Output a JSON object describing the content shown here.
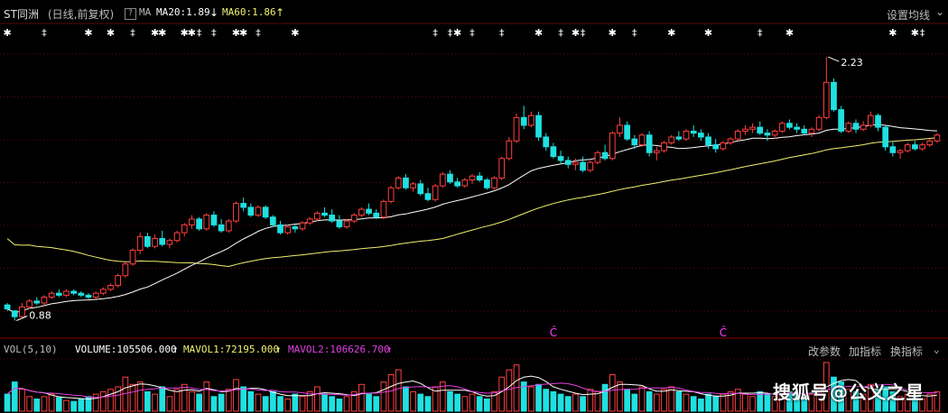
{
  "header": {
    "stock": "ST同洲",
    "mode": "(日线,前复权)",
    "ma_label": "MA",
    "ma20": "MA20:1.89",
    "ma20_arrow": "↓",
    "ma60": "MA60:1.86",
    "ma60_arrow": "↑",
    "settings": "设置均线"
  },
  "volume_bar": {
    "vol_label": "VOL(5,10)",
    "volume": "VOLUME:105506.000",
    "volume_arrow": "↑",
    "mavol1": "MAVOL1:72195.000",
    "mavol1_arrow": "↑",
    "mavol2": "MAVOL2:106626.700",
    "mavol2_arrow": "↑",
    "btn_params": "改参数",
    "btn_add": "加指标",
    "btn_switch": "换指标"
  },
  "watermark": "搜狐号@公义之星",
  "colors": {
    "up": "#ff4040",
    "down": "#20e0e0",
    "ma20": "#ffffff",
    "ma60": "#f0f070",
    "mavol1": "#ffffff",
    "mavol2": "#e040e0"
  },
  "chart_data": {
    "type": "candlestick",
    "series_ohlc": "daily candles (approx.)",
    "annotations": {
      "high_label": "2.23",
      "low_label": "0.88"
    },
    "price_range": [
      0.85,
      2.3
    ],
    "candles": [
      [
        0.96,
        0.97,
        0.93,
        0.94
      ],
      [
        0.93,
        0.93,
        0.88,
        0.9
      ],
      [
        0.9,
        0.97,
        0.89,
        0.95
      ],
      [
        0.95,
        0.99,
        0.94,
        0.98
      ],
      [
        0.98,
        1.0,
        0.96,
        0.97
      ],
      [
        0.97,
        1.01,
        0.96,
        1.0
      ],
      [
        1.0,
        1.03,
        0.99,
        1.02
      ],
      [
        1.02,
        1.04,
        1.0,
        1.01
      ],
      [
        1.01,
        1.04,
        1.0,
        1.03
      ],
      [
        1.03,
        1.04,
        1.01,
        1.02
      ],
      [
        1.02,
        1.03,
        1.0,
        1.01
      ],
      [
        1.01,
        1.02,
        0.99,
        1.0
      ],
      [
        1.0,
        1.03,
        0.99,
        1.02
      ],
      [
        1.02,
        1.05,
        1.01,
        1.04
      ],
      [
        1.04,
        1.07,
        1.03,
        1.06
      ],
      [
        1.06,
        1.12,
        1.05,
        1.11
      ],
      [
        1.11,
        1.18,
        1.1,
        1.17
      ],
      [
        1.17,
        1.25,
        1.16,
        1.24
      ],
      [
        1.24,
        1.33,
        1.22,
        1.31
      ],
      [
        1.31,
        1.33,
        1.25,
        1.26
      ],
      [
        1.26,
        1.32,
        1.25,
        1.3
      ],
      [
        1.3,
        1.34,
        1.26,
        1.27
      ],
      [
        1.27,
        1.3,
        1.25,
        1.29
      ],
      [
        1.29,
        1.34,
        1.28,
        1.33
      ],
      [
        1.33,
        1.38,
        1.31,
        1.37
      ],
      [
        1.37,
        1.42,
        1.35,
        1.4
      ],
      [
        1.4,
        1.41,
        1.34,
        1.35
      ],
      [
        1.35,
        1.43,
        1.34,
        1.42
      ],
      [
        1.42,
        1.44,
        1.36,
        1.37
      ],
      [
        1.37,
        1.4,
        1.33,
        1.34
      ],
      [
        1.34,
        1.4,
        1.33,
        1.39
      ],
      [
        1.39,
        1.49,
        1.38,
        1.48
      ],
      [
        1.48,
        1.51,
        1.44,
        1.46
      ],
      [
        1.46,
        1.48,
        1.41,
        1.42
      ],
      [
        1.42,
        1.47,
        1.41,
        1.46
      ],
      [
        1.46,
        1.47,
        1.4,
        1.41
      ],
      [
        1.41,
        1.42,
        1.36,
        1.37
      ],
      [
        1.37,
        1.39,
        1.32,
        1.33
      ],
      [
        1.33,
        1.37,
        1.32,
        1.36
      ],
      [
        1.36,
        1.37,
        1.33,
        1.35
      ],
      [
        1.35,
        1.39,
        1.34,
        1.38
      ],
      [
        1.38,
        1.41,
        1.37,
        1.4
      ],
      [
        1.4,
        1.44,
        1.39,
        1.43
      ],
      [
        1.43,
        1.46,
        1.41,
        1.42
      ],
      [
        1.42,
        1.45,
        1.38,
        1.39
      ],
      [
        1.39,
        1.42,
        1.35,
        1.36
      ],
      [
        1.36,
        1.4,
        1.35,
        1.39
      ],
      [
        1.39,
        1.43,
        1.38,
        1.42
      ],
      [
        1.42,
        1.46,
        1.41,
        1.45
      ],
      [
        1.45,
        1.48,
        1.42,
        1.43
      ],
      [
        1.43,
        1.45,
        1.4,
        1.41
      ],
      [
        1.41,
        1.5,
        1.4,
        1.49
      ],
      [
        1.49,
        1.57,
        1.48,
        1.56
      ],
      [
        1.56,
        1.62,
        1.55,
        1.61
      ],
      [
        1.61,
        1.63,
        1.55,
        1.56
      ],
      [
        1.56,
        1.59,
        1.54,
        1.58
      ],
      [
        1.58,
        1.6,
        1.52,
        1.53
      ],
      [
        1.53,
        1.56,
        1.49,
        1.5
      ],
      [
        1.5,
        1.58,
        1.49,
        1.57
      ],
      [
        1.57,
        1.64,
        1.56,
        1.63
      ],
      [
        1.63,
        1.65,
        1.58,
        1.59
      ],
      [
        1.59,
        1.61,
        1.56,
        1.57
      ],
      [
        1.57,
        1.61,
        1.56,
        1.6
      ],
      [
        1.6,
        1.63,
        1.58,
        1.62
      ],
      [
        1.62,
        1.64,
        1.59,
        1.6
      ],
      [
        1.6,
        1.61,
        1.55,
        1.56
      ],
      [
        1.56,
        1.62,
        1.55,
        1.61
      ],
      [
        1.61,
        1.72,
        1.6,
        1.71
      ],
      [
        1.71,
        1.82,
        1.7,
        1.8
      ],
      [
        1.8,
        1.94,
        1.79,
        1.92
      ],
      [
        1.92,
        1.98,
        1.86,
        1.88
      ],
      [
        1.88,
        1.95,
        1.87,
        1.93
      ],
      [
        1.93,
        1.95,
        1.8,
        1.82
      ],
      [
        1.82,
        1.84,
        1.75,
        1.77
      ],
      [
        1.77,
        1.79,
        1.71,
        1.72
      ],
      [
        1.72,
        1.75,
        1.68,
        1.7
      ],
      [
        1.7,
        1.72,
        1.66,
        1.68
      ],
      [
        1.68,
        1.71,
        1.65,
        1.69
      ],
      [
        1.69,
        1.72,
        1.64,
        1.65
      ],
      [
        1.65,
        1.7,
        1.64,
        1.69
      ],
      [
        1.69,
        1.75,
        1.68,
        1.74
      ],
      [
        1.74,
        1.78,
        1.7,
        1.71
      ],
      [
        1.71,
        1.85,
        1.7,
        1.84
      ],
      [
        1.84,
        1.92,
        1.82,
        1.88
      ],
      [
        1.88,
        1.9,
        1.8,
        1.81
      ],
      [
        1.81,
        1.83,
        1.76,
        1.78
      ],
      [
        1.78,
        1.84,
        1.77,
        1.83
      ],
      [
        1.83,
        1.85,
        1.72,
        1.74
      ],
      [
        1.74,
        1.77,
        1.7,
        1.75
      ],
      [
        1.75,
        1.8,
        1.74,
        1.79
      ],
      [
        1.79,
        1.83,
        1.78,
        1.82
      ],
      [
        1.82,
        1.85,
        1.8,
        1.81
      ],
      [
        1.81,
        1.86,
        1.8,
        1.85
      ],
      [
        1.85,
        1.88,
        1.82,
        1.84
      ],
      [
        1.84,
        1.86,
        1.8,
        1.82
      ],
      [
        1.82,
        1.84,
        1.76,
        1.78
      ],
      [
        1.78,
        1.81,
        1.74,
        1.76
      ],
      [
        1.76,
        1.8,
        1.75,
        1.79
      ],
      [
        1.79,
        1.82,
        1.78,
        1.81
      ],
      [
        1.81,
        1.86,
        1.8,
        1.85
      ],
      [
        1.85,
        1.88,
        1.83,
        1.86
      ],
      [
        1.86,
        1.89,
        1.84,
        1.87
      ],
      [
        1.87,
        1.9,
        1.83,
        1.84
      ],
      [
        1.84,
        1.86,
        1.8,
        1.83
      ],
      [
        1.83,
        1.86,
        1.81,
        1.85
      ],
      [
        1.85,
        1.9,
        1.84,
        1.89
      ],
      [
        1.89,
        1.91,
        1.86,
        1.87
      ],
      [
        1.87,
        1.89,
        1.84,
        1.86
      ],
      [
        1.86,
        1.88,
        1.83,
        1.84
      ],
      [
        1.84,
        1.87,
        1.82,
        1.86
      ],
      [
        1.86,
        1.93,
        1.85,
        1.92
      ],
      [
        1.92,
        2.23,
        1.91,
        2.1
      ],
      [
        2.1,
        2.12,
        1.95,
        1.96
      ],
      [
        1.96,
        1.98,
        1.84,
        1.85
      ],
      [
        1.85,
        1.9,
        1.84,
        1.89
      ],
      [
        1.89,
        1.91,
        1.84,
        1.86
      ],
      [
        1.86,
        1.9,
        1.85,
        1.88
      ],
      [
        1.88,
        1.95,
        1.87,
        1.93
      ],
      [
        1.93,
        1.94,
        1.85,
        1.87
      ],
      [
        1.87,
        1.88,
        1.75,
        1.77
      ],
      [
        1.77,
        1.8,
        1.72,
        1.74
      ],
      [
        1.74,
        1.76,
        1.71,
        1.75
      ],
      [
        1.75,
        1.79,
        1.74,
        1.78
      ],
      [
        1.78,
        1.8,
        1.75,
        1.76
      ],
      [
        1.76,
        1.79,
        1.75,
        1.78
      ],
      [
        1.78,
        1.81,
        1.77,
        1.8
      ],
      [
        1.8,
        1.84,
        1.79,
        1.83
      ]
    ],
    "volumes": [
      0.35,
      0.6,
      0.45,
      0.3,
      0.25,
      0.3,
      0.35,
      0.28,
      0.22,
      0.2,
      0.25,
      0.3,
      0.35,
      0.4,
      0.45,
      0.5,
      0.7,
      0.55,
      0.6,
      0.4,
      0.35,
      0.5,
      0.3,
      0.45,
      0.55,
      0.4,
      0.35,
      0.6,
      0.3,
      0.35,
      0.45,
      0.65,
      0.5,
      0.4,
      0.35,
      0.3,
      0.4,
      0.3,
      0.25,
      0.35,
      0.3,
      0.4,
      0.5,
      0.35,
      0.3,
      0.25,
      0.3,
      0.4,
      0.55,
      0.35,
      0.3,
      0.6,
      0.75,
      0.85,
      0.5,
      0.4,
      0.35,
      0.3,
      0.5,
      0.6,
      0.4,
      0.35,
      0.3,
      0.35,
      0.3,
      0.25,
      0.4,
      0.7,
      0.85,
      0.95,
      0.6,
      0.5,
      0.55,
      0.45,
      0.4,
      0.35,
      0.3,
      0.35,
      0.3,
      0.45,
      0.4,
      0.55,
      0.75,
      0.6,
      0.45,
      0.35,
      0.5,
      0.4,
      0.35,
      0.45,
      0.5,
      0.4,
      0.35,
      0.3,
      0.25,
      0.35,
      0.3,
      0.35,
      0.4,
      0.45,
      0.35,
      0.3,
      0.4,
      0.35,
      0.3,
      0.45,
      0.4,
      0.35,
      0.3,
      0.35,
      0.5,
      1.0,
      0.7,
      0.6,
      0.45,
      0.4,
      0.35,
      0.55,
      0.45,
      0.5,
      0.4,
      0.3,
      0.35,
      0.3,
      0.25,
      0.35,
      0.4
    ],
    "markers": [
      {
        "kind": "star",
        "index": 0
      },
      {
        "kind": "dagger",
        "index": 5
      },
      {
        "kind": "star",
        "index": 11
      },
      {
        "kind": "star",
        "index": 14
      },
      {
        "kind": "dagger",
        "index": 17
      },
      {
        "kind": "star",
        "index": 20
      },
      {
        "kind": "star",
        "index": 21
      },
      {
        "kind": "star",
        "index": 24
      },
      {
        "kind": "star",
        "index": 25
      },
      {
        "kind": "dagger",
        "index": 26
      },
      {
        "kind": "dagger",
        "index": 28
      },
      {
        "kind": "star",
        "index": 31
      },
      {
        "kind": "star",
        "index": 32
      },
      {
        "kind": "dagger",
        "index": 34
      },
      {
        "kind": "star",
        "index": 39
      },
      {
        "kind": "dagger",
        "index": 58
      },
      {
        "kind": "dagger",
        "index": 60
      },
      {
        "kind": "star",
        "index": 61
      },
      {
        "kind": "dagger",
        "index": 63
      },
      {
        "kind": "dagger",
        "index": 67
      },
      {
        "kind": "star",
        "index": 72
      },
      {
        "kind": "dagger",
        "index": 75
      },
      {
        "kind": "star",
        "index": 77
      },
      {
        "kind": "dagger",
        "index": 78
      },
      {
        "kind": "star",
        "index": 82
      },
      {
        "kind": "dagger",
        "index": 85
      },
      {
        "kind": "star",
        "index": 90
      },
      {
        "kind": "star",
        "index": 95
      },
      {
        "kind": "dagger",
        "index": 102
      },
      {
        "kind": "star",
        "index": 106
      },
      {
        "kind": "star",
        "index": 120
      },
      {
        "kind": "star",
        "index": 123
      },
      {
        "kind": "dagger",
        "index": 124
      },
      {
        "kind": "dagger",
        "index": 132
      },
      {
        "kind": "star",
        "index": 134
      },
      {
        "kind": "star",
        "index": 140
      },
      {
        "kind": "star",
        "index": 143
      },
      {
        "kind": "dagger",
        "index": 146
      }
    ],
    "special_marks": [
      {
        "glyph": "Ĉ",
        "index": 74
      },
      {
        "glyph": "Ĉ",
        "index": 97
      }
    ]
  }
}
